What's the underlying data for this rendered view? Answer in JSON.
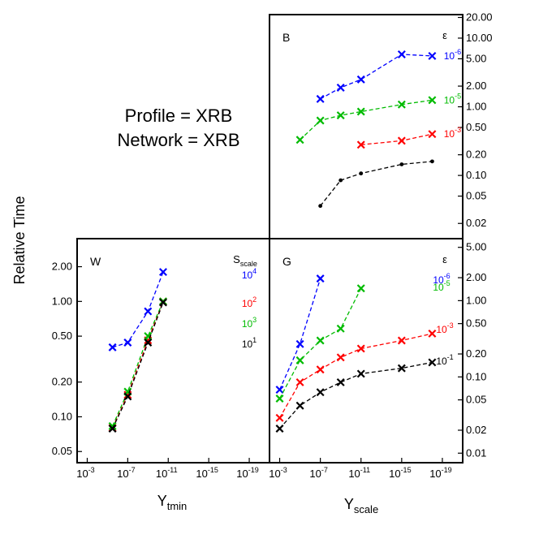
{
  "figure": {
    "annotation_lines": [
      "Profile = XRB",
      "Network = XRB"
    ],
    "ylabel": "Relative Time",
    "xlabel_left": {
      "base": "Y",
      "sub": "tmin"
    },
    "xlabel_right": {
      "base": "Y",
      "sub": "scale"
    }
  },
  "chart_data": [
    {
      "panel": "B",
      "type": "line",
      "xscale": "log",
      "yscale": "log",
      "xaxis_reversed": true,
      "xlim": [
        0.01,
        1e-21
      ],
      "ylim": [
        0.012,
        22
      ],
      "y_ticks": [
        "20.00",
        "10.00",
        "5.00",
        "2.00",
        "1.00",
        "0.50",
        "0.20",
        "0.10",
        "0.05",
        "0.02"
      ],
      "y_tick_values": [
        20,
        10,
        5,
        2,
        1,
        0.5,
        0.2,
        0.1,
        0.05,
        0.02
      ],
      "legend_title": "ε",
      "series": [
        {
          "name": "10^-6",
          "color": "#0000ff",
          "marker": "x",
          "x": [
            1e-07,
            1e-09,
            1e-11,
            1e-15,
            1e-18
          ],
          "y": [
            1.3,
            1.9,
            2.5,
            5.8,
            5.5
          ]
        },
        {
          "name": "10^-5",
          "color": "#00bb00",
          "marker": "x",
          "x": [
            1e-05,
            1e-07,
            1e-09,
            1e-11,
            1e-15,
            1e-18
          ],
          "y": [
            0.33,
            0.63,
            0.75,
            0.85,
            1.08,
            1.25
          ]
        },
        {
          "name": "10^-3",
          "color": "#ff0000",
          "marker": "x",
          "x": [
            1e-11,
            1e-15,
            1e-18
          ],
          "y": [
            0.28,
            0.32,
            0.4
          ]
        },
        {
          "name": "",
          "color": "#000000",
          "marker": "dot",
          "x": [
            1e-07,
            1e-09,
            1e-11,
            1e-15,
            1e-18
          ],
          "y": [
            0.036,
            0.085,
            0.107,
            0.145,
            0.16
          ]
        }
      ]
    },
    {
      "panel": "W",
      "type": "line",
      "xscale": "log",
      "yscale": "log",
      "xaxis_reversed": true,
      "xlim": [
        0.01,
        1e-21
      ],
      "ylim": [
        0.04,
        3.5
      ],
      "x_ticks": [
        {
          "base": "10",
          "exp": "-3"
        },
        {
          "base": "10",
          "exp": "-7"
        },
        {
          "base": "10",
          "exp": "-11"
        },
        {
          "base": "10",
          "exp": "-15"
        },
        {
          "base": "10",
          "exp": "-19"
        }
      ],
      "x_tick_values": [
        0.001,
        1e-07,
        1e-11,
        1e-15,
        1e-19
      ],
      "y_ticks": [
        "2.00",
        "1.00",
        "0.50",
        "0.20",
        "0.10",
        "0.05"
      ],
      "y_tick_values": [
        2,
        1,
        0.5,
        0.2,
        0.1,
        0.05
      ],
      "legend_title": {
        "base": "S",
        "sub": "scale"
      },
      "series": [
        {
          "name": "10^4",
          "color": "#0000ff",
          "marker": "x",
          "x": [
            3.2e-06,
            1e-07,
            1e-09,
            3.2e-11
          ],
          "y": [
            0.4,
            0.44,
            0.82,
            1.8
          ]
        },
        {
          "name": "10^2",
          "color": "#ff0000",
          "marker": "x",
          "x": [
            3.2e-06,
            1e-07,
            1e-09,
            3.2e-11
          ],
          "y": [
            0.08,
            0.155,
            0.46,
            1.0
          ]
        },
        {
          "name": "10^3",
          "color": "#00bb00",
          "marker": "x",
          "x": [
            3.2e-06,
            1e-07,
            1e-09,
            3.2e-11
          ],
          "y": [
            0.083,
            0.165,
            0.5,
            1.0
          ]
        },
        {
          "name": "10^1",
          "color": "#000000",
          "marker": "x",
          "x": [
            3.2e-06,
            1e-07,
            1e-09,
            3.2e-11
          ],
          "y": [
            0.079,
            0.15,
            0.44,
            0.98
          ]
        }
      ]
    },
    {
      "panel": "G",
      "type": "line",
      "xscale": "log",
      "yscale": "log",
      "xaxis_reversed": true,
      "xlim": [
        0.01,
        1e-21
      ],
      "ylim": [
        0.0075,
        6.5
      ],
      "x_ticks": [
        {
          "base": "10",
          "exp": "-3"
        },
        {
          "base": "10",
          "exp": "-7"
        },
        {
          "base": "10",
          "exp": "-11"
        },
        {
          "base": "10",
          "exp": "-15"
        },
        {
          "base": "10",
          "exp": "-19"
        }
      ],
      "x_tick_values": [
        0.001,
        1e-07,
        1e-11,
        1e-15,
        1e-19
      ],
      "y_ticks": [
        "5.00",
        "2.00",
        "1.00",
        "0.50",
        "0.20",
        "0.10",
        "0.05",
        "0.02",
        "0.01"
      ],
      "y_tick_values": [
        5,
        2,
        1,
        0.5,
        0.2,
        0.1,
        0.05,
        0.02,
        0.01
      ],
      "legend_title": "ε",
      "series": [
        {
          "name": "10^-6",
          "color": "#0000ff",
          "marker": "x",
          "x": [
            0.001,
            1e-05,
            1e-07
          ],
          "y": [
            0.068,
            0.27,
            1.95
          ]
        },
        {
          "name": "10^-5",
          "color": "#00bb00",
          "marker": "x",
          "x": [
            0.001,
            1e-05,
            1e-07,
            1e-09,
            1e-11
          ],
          "y": [
            0.052,
            0.165,
            0.3,
            0.43,
            1.45
          ]
        },
        {
          "name": "10^-3",
          "color": "#ff0000",
          "marker": "xdot",
          "x": [
            0.001,
            1e-05,
            1e-07,
            1e-09,
            1e-11,
            1e-15,
            1e-18
          ],
          "y": [
            0.029,
            0.085,
            0.125,
            0.18,
            0.235,
            0.3,
            0.37
          ]
        },
        {
          "name": "10^-1",
          "color": "#000000",
          "marker": "xdot",
          "x": [
            0.001,
            1e-05,
            1e-07,
            1e-09,
            1e-11,
            1e-15,
            1e-18
          ],
          "y": [
            0.021,
            0.042,
            0.063,
            0.085,
            0.11,
            0.13,
            0.155
          ]
        }
      ]
    }
  ]
}
